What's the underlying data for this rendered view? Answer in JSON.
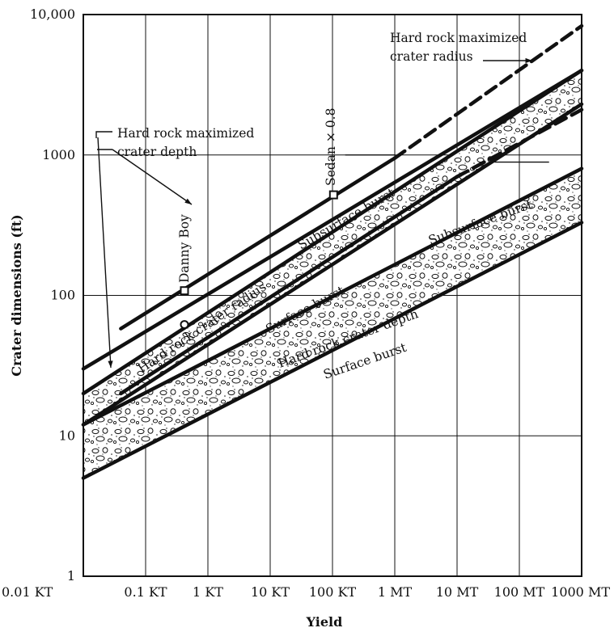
{
  "chart_data": {
    "type": "line",
    "xscale": "log",
    "yscale": "log",
    "xlabel": "Yield",
    "ylabel": "Crater dimensions (ft)",
    "x_ticks": [
      {
        "label": "0.01 KT",
        "kt": 0.01
      },
      {
        "label": "0.1 KT",
        "kt": 0.1
      },
      {
        "label": "1 KT",
        "kt": 1
      },
      {
        "label": "10 KT",
        "kt": 10
      },
      {
        "label": "100 KT",
        "kt": 100
      },
      {
        "label": "1 MT",
        "kt": 1000
      },
      {
        "label": "10  MT",
        "kt": 10000
      },
      {
        "label": "100  MT",
        "kt": 100000
      },
      {
        "label": "1000 MT",
        "kt": 1000000
      }
    ],
    "y_ticks": [
      {
        "label": "1",
        "ft": 1
      },
      {
        "label": "10",
        "ft": 10
      },
      {
        "label": "100",
        "ft": 100
      },
      {
        "label": "1000",
        "ft": 1000
      },
      {
        "label": "10,000",
        "ft": 10000
      }
    ],
    "xlim_kt": [
      0.01,
      1000000
    ],
    "ylim_ft": [
      1,
      10000
    ],
    "grid": true,
    "bands": [
      {
        "id": "radius-surface-burst",
        "lower": [
          [
            0.01,
            12
          ],
          [
            1000000,
            2300
          ]
        ],
        "upper": [
          [
            0.01,
            20
          ],
          [
            1000000,
            4000
          ]
        ]
      },
      {
        "id": "depth-band",
        "lower": [
          [
            0.01,
            5
          ],
          [
            1000000,
            330
          ]
        ],
        "upper": [
          [
            0.01,
            12
          ],
          [
            1000000,
            800
          ]
        ]
      }
    ],
    "lines": [
      {
        "id": "hard-rock-maximized-crater-depth",
        "style": "solid",
        "points": [
          [
            0.01,
            30
          ],
          [
            1000000,
            4000
          ]
        ]
      },
      {
        "id": "upper-envelope",
        "style": "solid",
        "points": [
          [
            0.04,
            58
          ],
          [
            1000,
            950
          ]
        ]
      },
      {
        "id": "upper-envelope-extension",
        "style": "dashed",
        "points": [
          [
            1000,
            950
          ],
          [
            1000000,
            8300
          ]
        ]
      },
      {
        "id": "hard-rock-crater-radius",
        "style": "solid",
        "points": [
          [
            0.04,
            20
          ],
          [
            10000,
            700
          ]
        ]
      },
      {
        "id": "hard-rock-crater-radius-extension",
        "style": "dashed",
        "points": [
          [
            10000,
            700
          ],
          [
            1000000,
            2100
          ]
        ]
      },
      {
        "id": "leader-radius",
        "style": "solid",
        "points": [
          [
            40000,
            890
          ],
          [
            300000,
            890
          ]
        ]
      },
      {
        "id": "leader-sedan",
        "style": "solid",
        "points": [
          [
            160,
            1000
          ],
          [
            1000,
            1000
          ]
        ]
      }
    ],
    "points": [
      {
        "label": "Danny Boy",
        "marker": "square",
        "kt": 0.42,
        "ft": 108
      },
      {
        "label": "Sedan × 0.8",
        "marker": "square",
        "kt": 104,
        "ft": 520
      },
      {
        "label": "",
        "marker": "circle",
        "kt": 0.42,
        "ft": 62
      }
    ],
    "annotations": [
      {
        "id": "ann-hard-rock-max-radius",
        "lines": [
          "Hard rock maximized",
          "crater radius"
        ]
      },
      {
        "id": "ann-hard-rock-max-depth",
        "lines": [
          "Hard rock maximized",
          "crater depth"
        ]
      },
      {
        "id": "ann-subsurface-upper",
        "text": "Subsurface burst"
      },
      {
        "id": "ann-subsurface-lower",
        "text": "Subsurface burst"
      },
      {
        "id": "ann-hard-rock-radius",
        "text": "Hard rock crater radius"
      },
      {
        "id": "ann-surface-upper",
        "text": "Surface burst"
      },
      {
        "id": "ann-hard-rock-depth",
        "text": "Hard rock crater depth"
      },
      {
        "id": "ann-surface-lower",
        "text": "Surface burst"
      },
      {
        "id": "ann-danny-boy",
        "text": "Danny Boy"
      },
      {
        "id": "ann-sedan",
        "text": "Sedan × 0.8"
      }
    ],
    "colors": {
      "ink": "#111111",
      "fill": "#ffffff"
    }
  }
}
